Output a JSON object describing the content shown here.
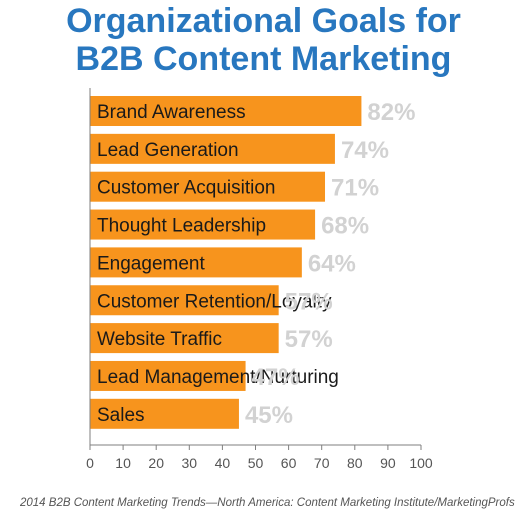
{
  "chart_data": {
    "type": "bar",
    "orientation": "horizontal",
    "title": "Organizational Goals for B2B Content Marketing",
    "title_lines": [
      "Organizational Goals for",
      "B2B Content Marketing"
    ],
    "categories": [
      "Brand Awareness",
      "Lead Generation",
      "Customer Acquisition",
      "Thought Leadership",
      "Engagement",
      "Customer Retention/Loyalty",
      "Website Traffic",
      "Lead Management/Nurturing",
      "Sales"
    ],
    "values": [
      82,
      74,
      71,
      68,
      64,
      57,
      57,
      47,
      45
    ],
    "value_labels": [
      "82%",
      "74%",
      "71%",
      "68%",
      "64%",
      "57%",
      "57%",
      "47%",
      "45%"
    ],
    "xlim": [
      0,
      100
    ],
    "xticks": [
      0,
      10,
      20,
      30,
      40,
      50,
      60,
      70,
      80,
      90,
      100
    ],
    "xlabel": "",
    "ylabel": "",
    "grid": false,
    "legend": "none"
  },
  "colors": {
    "title": "#2877bf",
    "bar": "#f7941d",
    "value_label": "#d2d2d2",
    "axis": "#7f7f7f"
  },
  "source": "2014 B2B Content Marketing Trends—North America: Content Marketing Institute/MarketingProfs"
}
